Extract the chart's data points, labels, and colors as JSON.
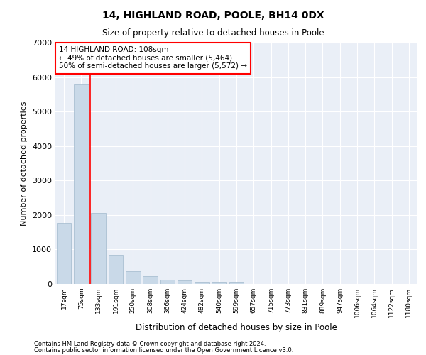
{
  "title": "14, HIGHLAND ROAD, POOLE, BH14 0DX",
  "subtitle": "Size of property relative to detached houses in Poole",
  "xlabel": "Distribution of detached houses by size in Poole",
  "ylabel": "Number of detached properties",
  "bar_labels": [
    "17sqm",
    "75sqm",
    "133sqm",
    "191sqm",
    "250sqm",
    "308sqm",
    "366sqm",
    "424sqm",
    "482sqm",
    "540sqm",
    "599sqm",
    "657sqm",
    "715sqm",
    "773sqm",
    "831sqm",
    "889sqm",
    "947sqm",
    "1006sqm",
    "1064sqm",
    "1122sqm",
    "1180sqm"
  ],
  "bar_values": [
    1780,
    5780,
    2060,
    840,
    380,
    220,
    115,
    110,
    70,
    55,
    60,
    0,
    0,
    0,
    0,
    0,
    0,
    0,
    0,
    0,
    0
  ],
  "bar_color": "#c9d9e8",
  "bar_edge_color": "#a0b8cc",
  "vline_x": 1.5,
  "vline_color": "red",
  "annotation_text": "14 HIGHLAND ROAD: 108sqm\n← 49% of detached houses are smaller (5,464)\n50% of semi-detached houses are larger (5,572) →",
  "annotation_box_color": "white",
  "annotation_box_edge": "red",
  "ylim": [
    0,
    7000
  ],
  "yticks": [
    0,
    1000,
    2000,
    3000,
    4000,
    5000,
    6000,
    7000
  ],
  "plot_bg_color": "#eaeff7",
  "footer1": "Contains HM Land Registry data © Crown copyright and database right 2024.",
  "footer2": "Contains public sector information licensed under the Open Government Licence v3.0."
}
